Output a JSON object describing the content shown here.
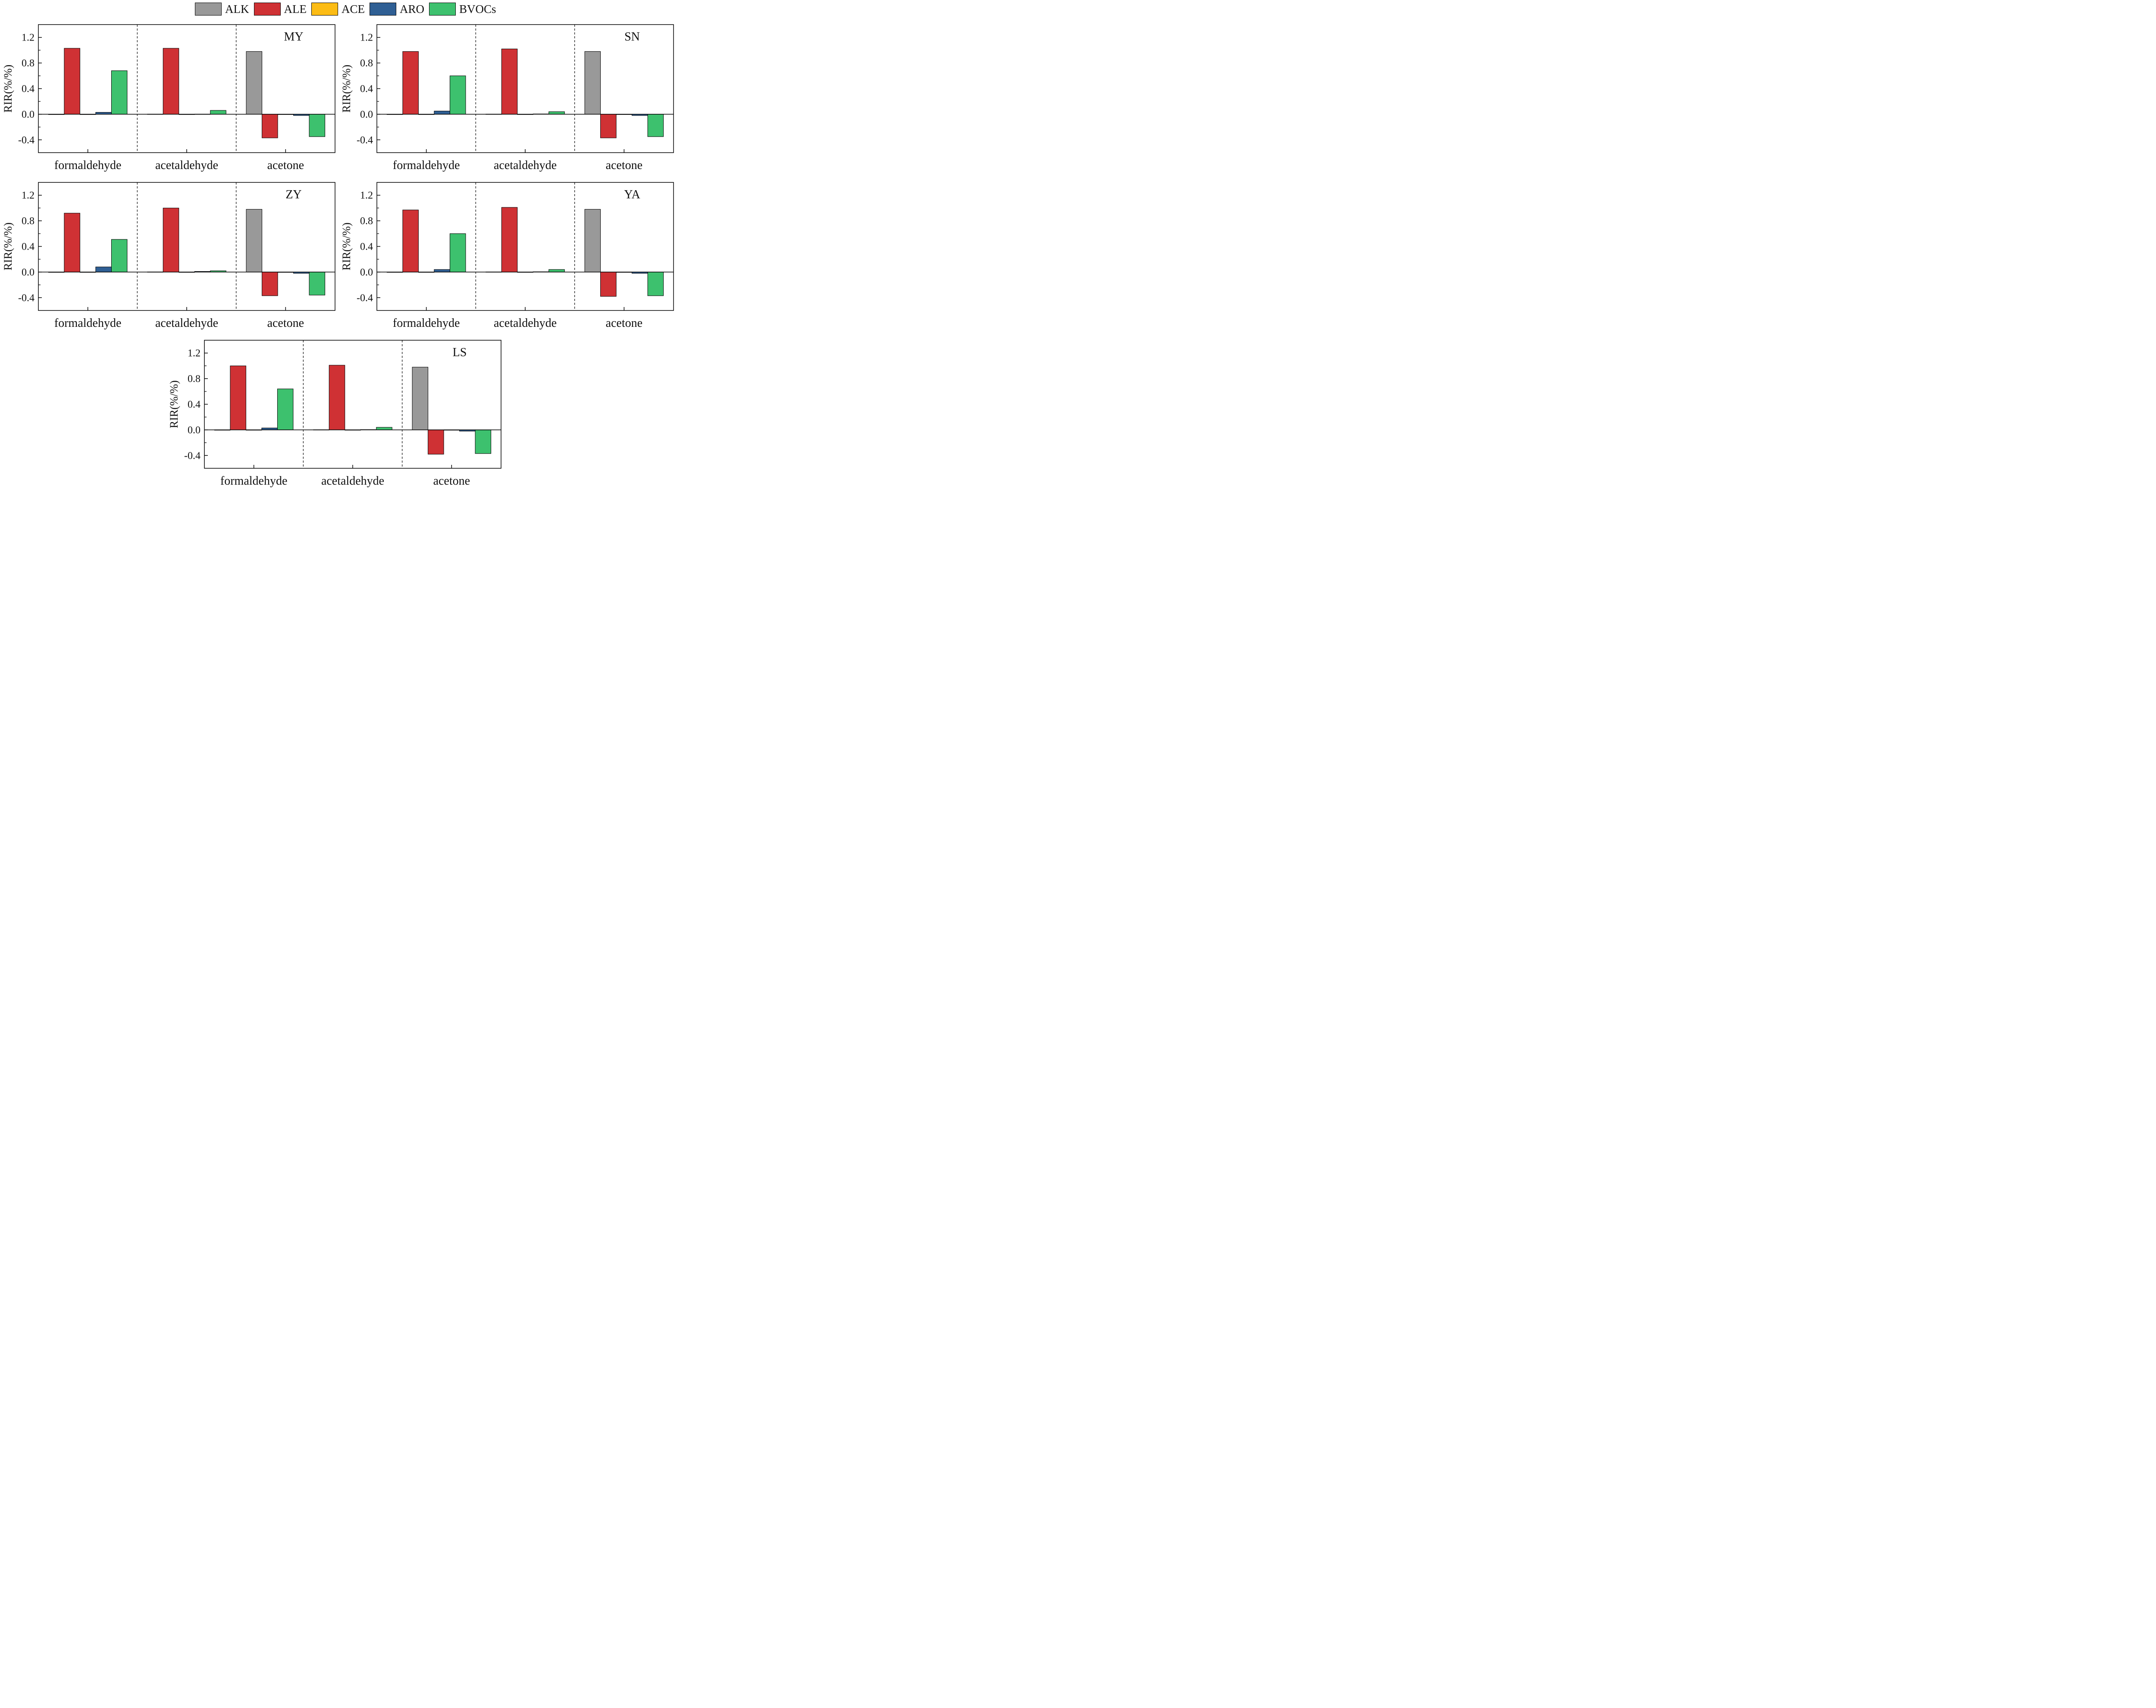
{
  "legend": [
    {
      "key": "ALK",
      "label": "ALK",
      "color": "#999999"
    },
    {
      "key": "ALE",
      "label": "ALE",
      "color": "#cf3134"
    },
    {
      "key": "ACE",
      "label": "ACE",
      "color": "#fcbc14"
    },
    {
      "key": "ARO",
      "label": "ARO",
      "color": "#2f5f94"
    },
    {
      "key": "BVOCs",
      "label": "BVOCs",
      "color": "#3dc16e"
    }
  ],
  "chart_data": [
    {
      "type": "bar",
      "title": "MY",
      "ylabel": "RIR(%/%)",
      "ylim": [
        -0.6,
        1.4
      ],
      "yticks": [
        "1.2",
        "0.8",
        "0.4",
        "0.0",
        "-0.4"
      ],
      "categories": [
        "formaldehyde",
        "acetaldehyde",
        "acetone"
      ],
      "series": [
        {
          "name": "ALK",
          "values": [
            0.0,
            0.003,
            0.98
          ]
        },
        {
          "name": "ALE",
          "values": [
            1.03,
            1.03,
            -0.37
          ]
        },
        {
          "name": "ACE",
          "values": [
            0.0,
            0.0,
            0.0
          ]
        },
        {
          "name": "ARO",
          "values": [
            0.03,
            0.003,
            -0.02
          ]
        },
        {
          "name": "BVOCs",
          "values": [
            0.68,
            0.06,
            -0.35
          ]
        }
      ]
    },
    {
      "type": "bar",
      "title": "SN",
      "ylabel": "RIR(%/%)",
      "ylim": [
        -0.6,
        1.4
      ],
      "yticks": [
        "1.2",
        "0.8",
        "0.4",
        "0.0",
        "-0.4"
      ],
      "categories": [
        "formaldehyde",
        "acetaldehyde",
        "acetone"
      ],
      "series": [
        {
          "name": "ALK",
          "values": [
            0.0,
            0.003,
            0.98
          ]
        },
        {
          "name": "ALE",
          "values": [
            0.98,
            1.02,
            -0.37
          ]
        },
        {
          "name": "ACE",
          "values": [
            0.0,
            0.0,
            0.0
          ]
        },
        {
          "name": "ARO",
          "values": [
            0.05,
            0.005,
            -0.02
          ]
        },
        {
          "name": "BVOCs",
          "values": [
            0.6,
            0.04,
            -0.35
          ]
        }
      ]
    },
    {
      "type": "bar",
      "title": "ZY",
      "ylabel": "RIR(%/%)",
      "ylim": [
        -0.6,
        1.4
      ],
      "yticks": [
        "1.2",
        "0.8",
        "0.4",
        "0.0",
        "-0.4"
      ],
      "categories": [
        "formaldehyde",
        "acetaldehyde",
        "acetone"
      ],
      "series": [
        {
          "name": "ALK",
          "values": [
            0.0,
            0.003,
            0.98
          ]
        },
        {
          "name": "ALE",
          "values": [
            0.92,
            1.0,
            -0.37
          ]
        },
        {
          "name": "ACE",
          "values": [
            0.0,
            0.0,
            0.0
          ]
        },
        {
          "name": "ARO",
          "values": [
            0.08,
            0.01,
            -0.02
          ]
        },
        {
          "name": "BVOCs",
          "values": [
            0.51,
            0.02,
            -0.36
          ]
        }
      ]
    },
    {
      "type": "bar",
      "title": "YA",
      "ylabel": "RIR(%/%)",
      "ylim": [
        -0.6,
        1.4
      ],
      "yticks": [
        "1.2",
        "0.8",
        "0.4",
        "0.0",
        "-0.4"
      ],
      "categories": [
        "formaldehyde",
        "acetaldehyde",
        "acetone"
      ],
      "series": [
        {
          "name": "ALK",
          "values": [
            0.0,
            0.003,
            0.98
          ]
        },
        {
          "name": "ALE",
          "values": [
            0.97,
            1.01,
            -0.38
          ]
        },
        {
          "name": "ACE",
          "values": [
            0.0,
            0.0,
            0.0
          ]
        },
        {
          "name": "ARO",
          "values": [
            0.04,
            0.005,
            -0.02
          ]
        },
        {
          "name": "BVOCs",
          "values": [
            0.6,
            0.04,
            -0.37
          ]
        }
      ]
    },
    {
      "type": "bar",
      "title": "LS",
      "ylabel": "RIR(%/%)",
      "ylim": [
        -0.6,
        1.4
      ],
      "yticks": [
        "1.2",
        "0.8",
        "0.4",
        "0.0",
        "-0.4"
      ],
      "categories": [
        "formaldehyde",
        "acetaldehyde",
        "acetone"
      ],
      "series": [
        {
          "name": "ALK",
          "values": [
            0.0,
            0.003,
            0.98
          ]
        },
        {
          "name": "ALE",
          "values": [
            1.0,
            1.01,
            -0.38
          ]
        },
        {
          "name": "ACE",
          "values": [
            0.0,
            0.0,
            0.0
          ]
        },
        {
          "name": "ARO",
          "values": [
            0.03,
            0.005,
            -0.02
          ]
        },
        {
          "name": "BVOCs",
          "values": [
            0.64,
            0.04,
            -0.37
          ]
        }
      ]
    }
  ]
}
